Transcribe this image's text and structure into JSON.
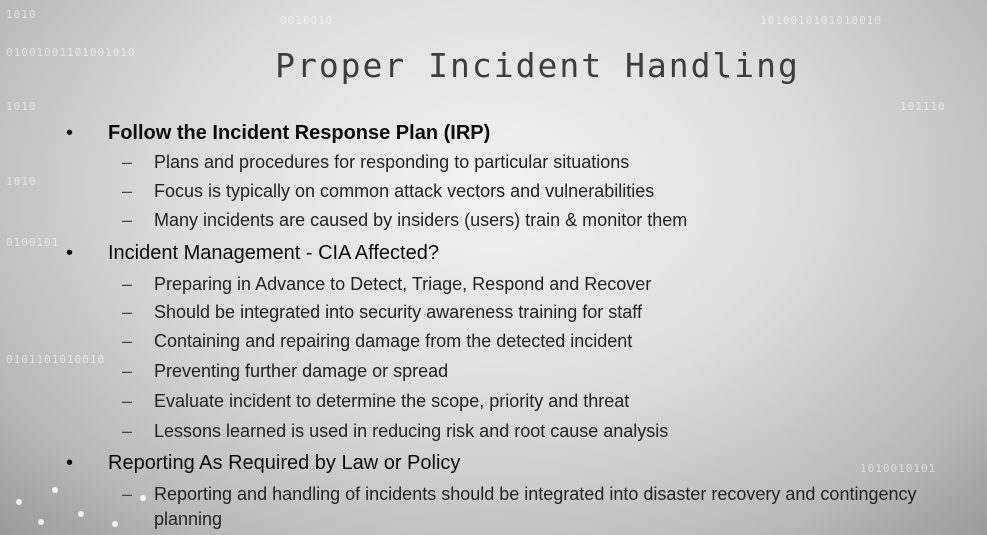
{
  "slide": {
    "title": "Proper Incident Handling",
    "sections": [
      {
        "bullet": "•",
        "heading": "Follow the Incident Response Plan (IRP)",
        "items": [
          "Plans and procedures for responding to particular situations",
          "Focus is typically on common attack vectors and vulnerabilities",
          "Many incidents are caused by insiders (users) train & monitor them"
        ]
      },
      {
        "bullet": "•",
        "heading": "Incident Management - CIA Affected?",
        "items": [
          "Preparing in Advance to Detect, Triage, Respond and Recover",
          "Should be integrated into security awareness training for staff",
          "Containing and repairing damage from the detected incident",
          "Preventing further damage or spread",
          "Evaluate incident to determine the scope, priority and threat",
          "Lessons learned is used in reducing risk and root cause analysis"
        ]
      },
      {
        "bullet": "•",
        "heading": "Reporting As Required by Law or Policy",
        "items": [
          "Reporting and handling of incidents should be integrated into disaster recovery and contingency planning"
        ]
      }
    ],
    "dash": "–"
  }
}
